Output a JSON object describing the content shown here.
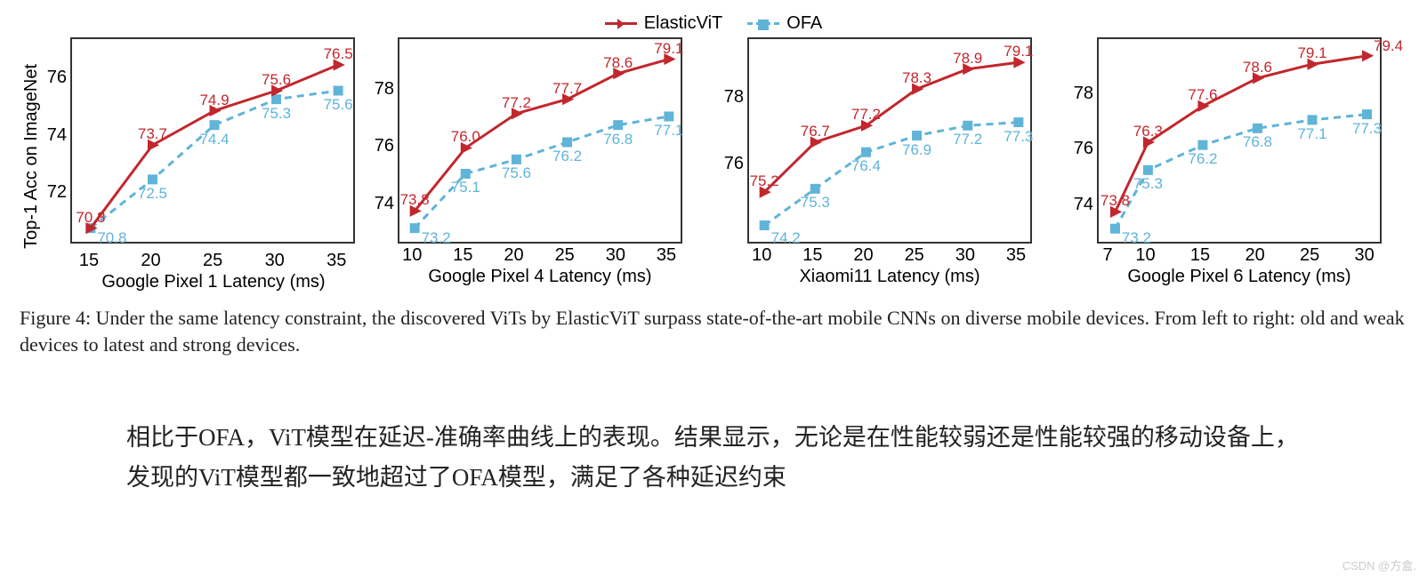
{
  "legend": {
    "elastic": {
      "label": "ElasticViT",
      "color": "#c1272d",
      "marker": "triangle",
      "line_style": "solid"
    },
    "ofa": {
      "label": "OFA",
      "color": "#5fb4d8",
      "marker": "square",
      "line_style": "dashed"
    }
  },
  "panels": [
    {
      "ylabel": "Top-1 Acc on ImageNet",
      "xlabel": "Google Pixel 1 Latency (ms)",
      "x_ticks": [
        15,
        20,
        25,
        30,
        35
      ],
      "y_ticks": [
        72,
        74,
        76
      ],
      "ylim": [
        70.2,
        77.4
      ],
      "xlim": [
        13.5,
        36.5
      ],
      "series": {
        "elastic": {
          "x": [
            15,
            20,
            25,
            30,
            35
          ],
          "y": [
            70.8,
            73.7,
            74.9,
            75.6,
            76.5
          ],
          "labels": [
            "70.8",
            "73.7",
            "74.9",
            "75.6",
            "76.5"
          ],
          "label_pos": "above"
        },
        "ofa": {
          "x": [
            15,
            20,
            25,
            30,
            35
          ],
          "y": [
            70.8,
            72.5,
            74.4,
            75.3,
            75.6
          ],
          "labels": [
            "70.8",
            "72.5",
            "74.4",
            "75.3",
            "75.6"
          ],
          "label_pos": "below"
        }
      }
    },
    {
      "xlabel": "Google Pixel 4 Latency (ms)",
      "x_ticks": [
        10,
        15,
        20,
        25,
        30,
        35
      ],
      "y_ticks": [
        74,
        76,
        78
      ],
      "ylim": [
        72.6,
        79.8
      ],
      "xlim": [
        8.5,
        36.5
      ],
      "series": {
        "elastic": {
          "x": [
            10,
            15,
            20,
            25,
            30,
            35
          ],
          "y": [
            73.8,
            76.0,
            77.2,
            77.7,
            78.6,
            79.1
          ],
          "labels": [
            "73.8",
            "76.0",
            "77.2",
            "77.7",
            "78.6",
            "79.1"
          ],
          "label_pos": "above"
        },
        "ofa": {
          "x": [
            10,
            15,
            20,
            25,
            30,
            35
          ],
          "y": [
            73.2,
            75.1,
            75.6,
            76.2,
            76.8,
            77.1
          ],
          "labels": [
            "73.2",
            "75.1",
            "75.6",
            "76.2",
            "76.8",
            "77.1"
          ],
          "label_pos": "below"
        }
      }
    },
    {
      "xlabel": "Xiaomi11 Latency (ms)",
      "x_ticks": [
        10,
        15,
        20,
        25,
        30,
        35
      ],
      "y_ticks": [
        76,
        78
      ],
      "ylim": [
        73.6,
        79.8
      ],
      "xlim": [
        8.5,
        36.5
      ],
      "series": {
        "elastic": {
          "x": [
            10,
            15,
            20,
            25,
            30,
            35
          ],
          "y": [
            75.2,
            76.7,
            77.2,
            78.3,
            78.9,
            79.1
          ],
          "labels": [
            "75.2",
            "76.7",
            "77.2",
            "78.3",
            "78.9",
            "79.1"
          ],
          "label_pos": "above"
        },
        "ofa": {
          "x": [
            10,
            15,
            20,
            25,
            30,
            35
          ],
          "y": [
            74.2,
            75.3,
            76.4,
            76.9,
            77.2,
            77.3
          ],
          "labels": [
            "74.2",
            "75.3",
            "76.4",
            "76.9",
            "77.2",
            "77.3"
          ],
          "label_pos": "below"
        }
      }
    },
    {
      "xlabel": "Google Pixel 6 Latency (ms)",
      "x_ticks": [
        7,
        10,
        15,
        20,
        25,
        30
      ],
      "y_ticks": [
        74,
        76,
        78
      ],
      "ylim": [
        72.6,
        80.0
      ],
      "xlim": [
        5.5,
        31.5
      ],
      "series": {
        "elastic": {
          "x": [
            7,
            10,
            15,
            20,
            25,
            30
          ],
          "y": [
            73.8,
            76.3,
            77.6,
            78.6,
            79.1,
            79.4
          ],
          "labels": [
            "73.8",
            "76.3",
            "77.6",
            "78.6",
            "79.1",
            "79.4"
          ],
          "label_pos": "above"
        },
        "ofa": {
          "x": [
            7,
            10,
            15,
            20,
            25,
            30
          ],
          "y": [
            73.2,
            75.3,
            76.2,
            76.8,
            77.1,
            77.3
          ],
          "labels": [
            "73.2",
            "75.3",
            "76.2",
            "76.8",
            "77.1",
            "77.3"
          ],
          "label_pos": "below"
        }
      }
    }
  ],
  "figure_caption": "Figure 4: Under the same latency constraint, the discovered ViTs by ElasticViT surpass state-of-the-art mobile CNNs on diverse mobile devices. From left to right: old and weak devices to latest and strong devices.",
  "chinese_paragraph": "相比于OFA，ViT模型在延迟-准确率曲线上的表现。结果显示，无论是在性能较弱还是性能较强的移动设备上，发现的ViT模型都一致地超过了OFA模型，满足了各种延迟约束",
  "watermark": "CSDN @方盒.",
  "style": {
    "plot_border_color": "#333333",
    "background_color": "#ffffff",
    "tick_fontsize": 20,
    "label_fontsize": 20,
    "point_label_fontsize": 17,
    "caption_fontsize": 22,
    "chinese_fontsize": 27,
    "line_width": 3,
    "marker_size": 11
  }
}
